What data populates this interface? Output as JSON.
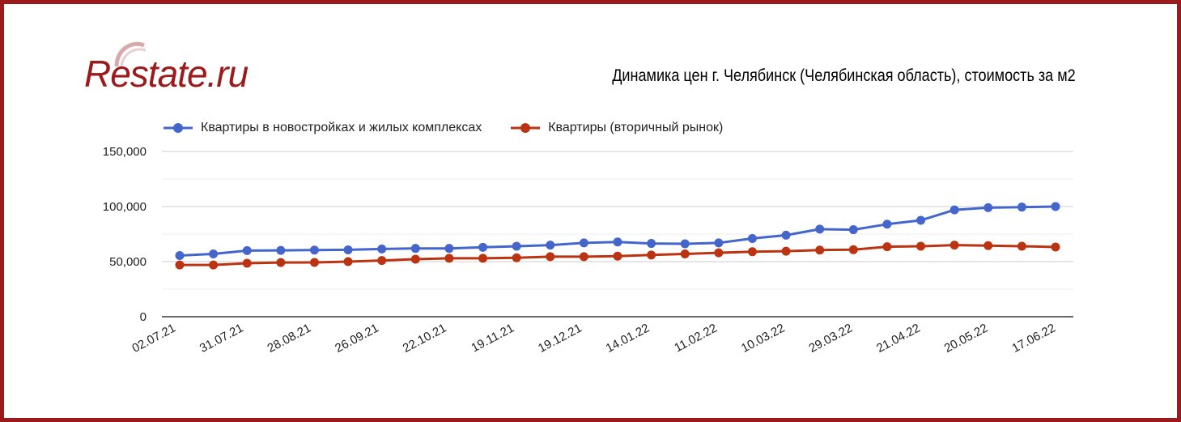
{
  "logo": {
    "text": "Restate.ru"
  },
  "chart_data": {
    "type": "line",
    "title": "Динамика цен г. Челябинск (Челябинская область), стоимость за м2",
    "xlabel": "",
    "ylabel": "",
    "ylim": [
      0,
      150000
    ],
    "yticks": [
      "0",
      "50,000",
      "100,000",
      "150,000"
    ],
    "x_tick_labels": [
      "02.07.21",
      "31.07.21",
      "28.08.21",
      "26.09.21",
      "22.10.21",
      "19.11.21",
      "19.12.21",
      "14.01.22",
      "11.02.22",
      "10.03.22",
      "29.03.22",
      "21.04.22",
      "20.05.22",
      "17.06.22"
    ],
    "legend_position": "top-left",
    "grid": true,
    "series": [
      {
        "name": "Квартиры в новостройках и жилых комплексах",
        "color": "#4466cc",
        "values": [
          55500,
          57000,
          60000,
          60200,
          60500,
          60700,
          61500,
          62000,
          62000,
          63000,
          64000,
          65000,
          67000,
          67800,
          66500,
          66200,
          67000,
          71000,
          74000,
          79500,
          79000,
          84000,
          87500,
          97000,
          99000,
          99500,
          100000
        ]
      },
      {
        "name": "Квартиры (вторичный рынок)",
        "color": "#bb3311",
        "values": [
          47000,
          47000,
          48500,
          49200,
          49300,
          50000,
          51000,
          52200,
          53000,
          53000,
          53500,
          54500,
          54500,
          55000,
          56000,
          57000,
          58000,
          59000,
          59500,
          60500,
          60800,
          63500,
          64000,
          65000,
          64500,
          64000,
          63200
        ]
      }
    ]
  }
}
